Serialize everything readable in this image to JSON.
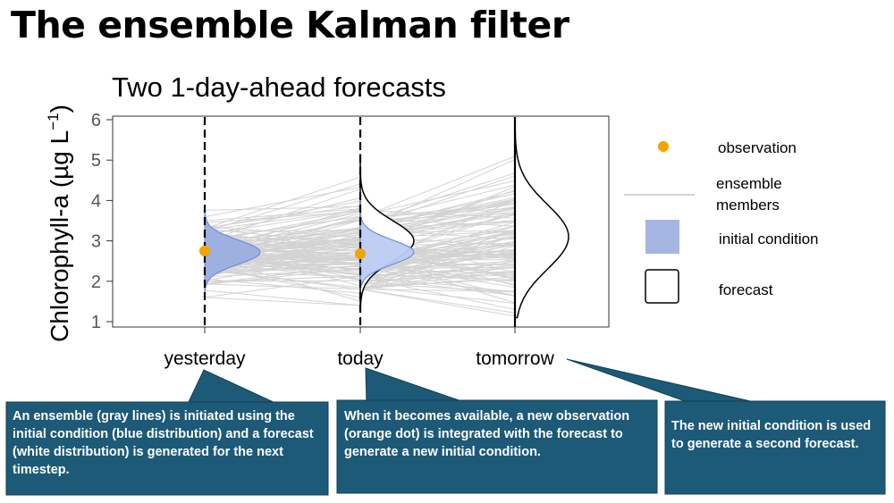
{
  "title": "The ensemble Kalman filter",
  "chart_data": {
    "type": "line",
    "title": "Two 1-day-ahead forecasts",
    "ylabel": "Chlorophyll-a (µg L⁻¹)",
    "ylim": [
      0.9,
      6.1
    ],
    "yticks": [
      "1",
      "2",
      "3",
      "4",
      "5",
      "6"
    ],
    "categories": [
      "yesterday",
      "today",
      "tomorrow"
    ],
    "grid": false,
    "legend_position": "right",
    "series": [
      {
        "name": "observation",
        "kind": "point",
        "color": "#F5A300",
        "values": [
          2.75,
          2.68,
          null
        ]
      },
      {
        "name": "ensemble members",
        "kind": "line",
        "color": "#d3d3d3",
        "values": [
          [
            1.6,
            3.8
          ],
          [
            1.4,
            5.2
          ],
          [
            1.05,
            5.9
          ]
        ]
      },
      {
        "name": "initial condition",
        "kind": "density",
        "color": "#6b8fdd",
        "values": [
          {
            "min": 1.65,
            "max": 3.8,
            "mode": 2.72
          },
          {
            "min": 1.9,
            "max": 4.15,
            "mode": 2.72
          },
          null
        ]
      },
      {
        "name": "forecast",
        "kind": "density",
        "color": "#000000",
        "values": [
          null,
          {
            "min": 1.4,
            "max": 5.15,
            "mode": 3.0
          },
          {
            "min": 1.1,
            "max": 5.8,
            "mode": 3.1
          }
        ]
      }
    ]
  },
  "legend": {
    "observation": "observation",
    "ensemble_members": "ensemble members",
    "initial_condition": "initial condition",
    "forecast": "forecast"
  },
  "callouts": [
    "An ensemble (gray lines) is initiated using the initial condition (blue distribution) and a forecast (white distribution) is generated for the next timestep.",
    "When it becomes available, a new observation (orange dot) is integrated with the forecast to generate a new initial condition.",
    "The new initial condition is used to generate a second forecast."
  ]
}
